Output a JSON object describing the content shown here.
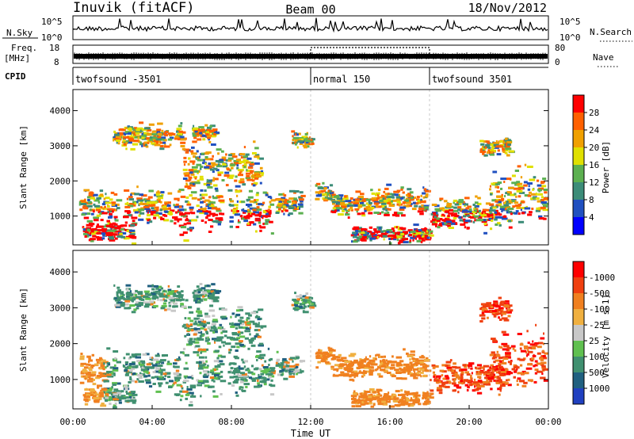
{
  "header": {
    "title_left": "Inuvik (fitACF)",
    "title_center": "Beam 00",
    "title_right": "18/Nov/2012"
  },
  "noise_panel": {
    "left_label": "N.Sky",
    "right_label": "N.Search",
    "left_ticks": [
      "10^5",
      "10^0"
    ],
    "right_ticks": [
      "10^5",
      "10^0"
    ]
  },
  "freq_panel": {
    "label_line1": "Freq.",
    "label_line2": "[MHz]",
    "left_ticks": [
      "18",
      "8"
    ],
    "right_ticks": [
      "80",
      "0"
    ],
    "right_label": "Nave",
    "nave_high_from_hour": 12,
    "nave_high_to_hour": 18
  },
  "cpid_panel": {
    "label": "CPID",
    "segments": [
      {
        "label": "twofsound -3501",
        "start_hour": 0
      },
      {
        "label": "normal 150",
        "start_hour": 12
      },
      {
        "label": "twofsound 3501",
        "start_hour": 18
      }
    ]
  },
  "chart_data": [
    {
      "type": "heatmap",
      "parameter": "Power",
      "ylabel": "Slant Range [km]",
      "ylim": [
        180,
        4600
      ],
      "xlim": [
        0,
        24
      ],
      "y_ticks": [
        1000,
        2000,
        3000,
        4000
      ],
      "colorbar": {
        "label": "Power [dB]",
        "tick_labels": [
          "4",
          "8",
          "12",
          "16",
          "20",
          "24",
          "28"
        ],
        "colors": [
          "#0000ff",
          "#2050c0",
          "#3c8c78",
          "#5cb050",
          "#e0e000",
          "#f0a000",
          "#ff6000",
          "#ff0000"
        ]
      }
    },
    {
      "type": "heatmap",
      "parameter": "Velocity",
      "ylabel": "Slant Range [km]",
      "xlabel": "Time UT",
      "ylim": [
        180,
        4600
      ],
      "xlim": [
        0,
        24
      ],
      "y_ticks": [
        1000,
        2000,
        3000,
        4000
      ],
      "x_tick_labels": [
        "00:00",
        "04:00",
        "08:00",
        "12:00",
        "16:00",
        "20:00",
        "00:00"
      ],
      "colorbar": {
        "label": "Velocity [m s-1]",
        "tick_labels": [
          "1000",
          "500",
          "100",
          "25",
          "-25",
          "-100",
          "-500",
          "-1000"
        ],
        "colors": [
          "#2040c0",
          "#206080",
          "#409070",
          "#60c050",
          "#c8c8c8",
          "#f0b040",
          "#f08020",
          "#f04010",
          "#ff0000"
        ]
      }
    }
  ]
}
